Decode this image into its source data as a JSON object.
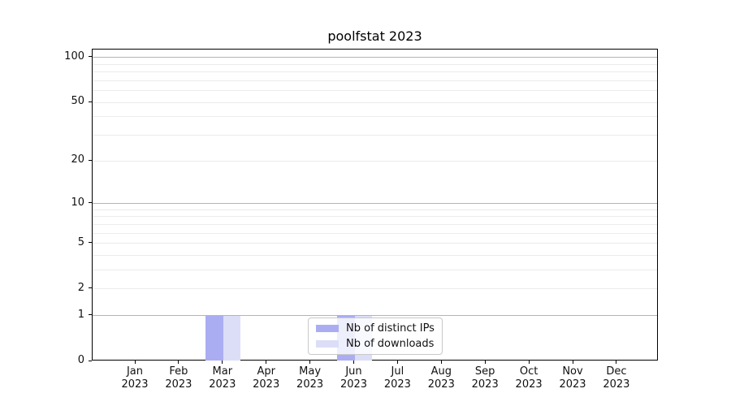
{
  "title": "poolfstat 2023",
  "chart_data": {
    "type": "bar",
    "title": "poolfstat 2023",
    "categories": [
      "Jan",
      "Feb",
      "Mar",
      "Apr",
      "May",
      "Jun",
      "Jul",
      "Aug",
      "Sep",
      "Oct",
      "Nov",
      "Dec"
    ],
    "category_year": "2023",
    "series": [
      {
        "name": "Nb of distinct IPs",
        "color": "#abadf3",
        "values": [
          0,
          0,
          1,
          0,
          0,
          1,
          0,
          0,
          0,
          0,
          0,
          0
        ]
      },
      {
        "name": "Nb of downloads",
        "color": "#dcdef8",
        "values": [
          0,
          0,
          1,
          0,
          0,
          1,
          0,
          0,
          0,
          0,
          0,
          0
        ]
      }
    ],
    "xlabel": "",
    "ylabel": "",
    "yscale": "log1p",
    "ylim": [
      0,
      113
    ],
    "ytick_values": [
      0,
      1,
      2,
      5,
      10,
      20,
      50,
      100
    ],
    "major_gridlines": [
      1,
      10,
      100
    ],
    "minor_gridlines": [
      2,
      3,
      4,
      5,
      6,
      7,
      8,
      9,
      20,
      30,
      40,
      50,
      60,
      70,
      80,
      90
    ],
    "grid": "horizontal",
    "legend_position": "lower center"
  },
  "legend": {
    "items": [
      {
        "label": "Nb of distinct IPs",
        "color": "#abadf3"
      },
      {
        "label": "Nb of downloads",
        "color": "#dcdef8"
      }
    ]
  },
  "colors": {
    "spine": "#000000",
    "major_grid": "#b4b4b4",
    "minor_grid": "#ebebeb",
    "background": "#ffffff"
  }
}
